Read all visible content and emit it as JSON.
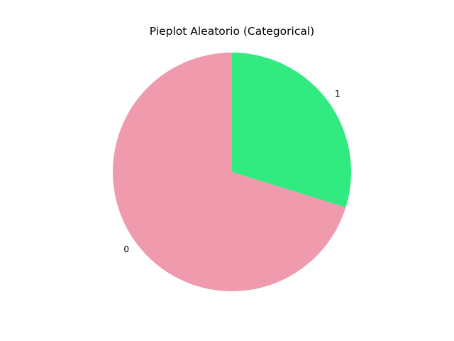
{
  "chart_data": {
    "type": "pie",
    "title": "Pieplot Aleatorio (Categorical)",
    "categories": [
      "0",
      "1"
    ],
    "values": [
      70.2,
      29.8
    ],
    "colors": [
      "#ef9aad",
      "#31ea80"
    ],
    "start_angle_deg": 90,
    "direction": "counterclockwise",
    "legend": "none"
  }
}
